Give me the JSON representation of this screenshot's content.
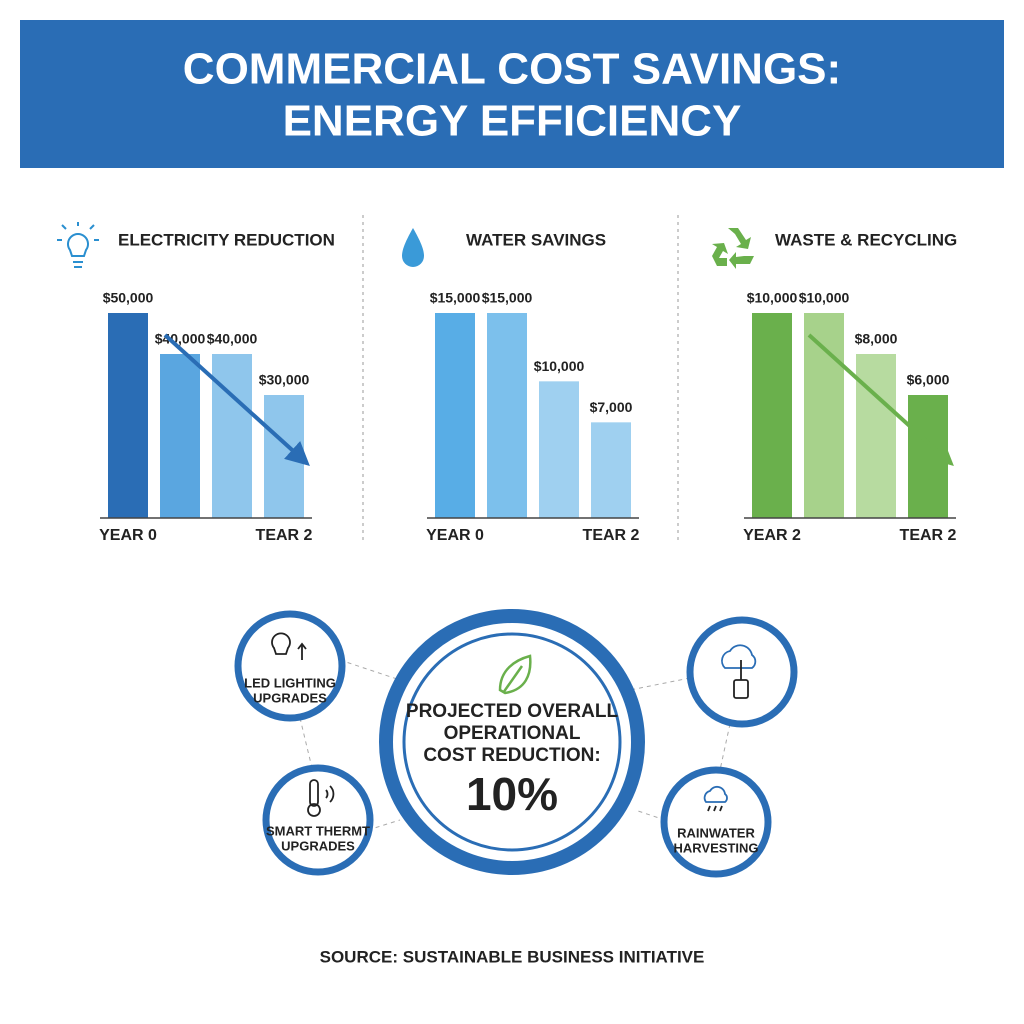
{
  "header": {
    "title_lines": [
      "COMMERCIAL COST SAVINGS:",
      "ENERGY EFFICIENCY"
    ]
  },
  "chart_data": [
    {
      "type": "bar",
      "title": "ELECTRICITY REDUCTION",
      "categories": [
        "YEAR 0",
        null,
        null,
        "TEAR 2"
      ],
      "values": [
        50000,
        40000,
        40000,
        30000
      ],
      "value_labels": [
        "$50,000",
        "$40,000",
        "$40,000",
        "$30,000"
      ],
      "colors": [
        "#2a6db5",
        "#5aa6e0",
        "#8fc6ec",
        "#8fc6ec"
      ],
      "arrow": true
    },
    {
      "type": "bar",
      "title": "WATER SAVINGS",
      "categories": [
        "YEAR 0",
        null,
        null,
        "TEAR 2"
      ],
      "values": [
        15000,
        15000,
        10000,
        7000
      ],
      "value_labels": [
        "$15,000",
        "$15,000",
        "$10,000",
        "$7,000"
      ],
      "colors": [
        "#58ade6",
        "#7cc0ec",
        "#9fd0f0",
        "#9fd0f0"
      ],
      "arrow": false
    },
    {
      "type": "bar",
      "title": "WASTE & RECYCLING",
      "categories": [
        "YEAR 2",
        null,
        null,
        "TEAR 2"
      ],
      "values": [
        10000,
        10000,
        8000,
        6000
      ],
      "value_labels": [
        "$10,000",
        "$10,000",
        "$8,000",
        "$6,000"
      ],
      "colors": [
        "#6ab04c",
        "#a7d28b",
        "#b7dba0",
        "#6ab04c"
      ],
      "arrow": true
    }
  ],
  "diagram": {
    "center_lines": [
      "PROJECTED OVERALL",
      "OPERATIONAL",
      "COST REDUCTION:"
    ],
    "center_value": "10%",
    "nodes": [
      {
        "lines": [
          "LED LIGHTING",
          "UPGRADES"
        ]
      },
      {
        "lines": [
          "SMART THERMT",
          "UPGRADES"
        ]
      },
      {
        "lines": []
      },
      {
        "lines": [
          "RAINWATER",
          "HARVESTING"
        ]
      }
    ]
  },
  "source": "SOURCE: SUSTAINABLE BUSINESS INITIATIVE"
}
